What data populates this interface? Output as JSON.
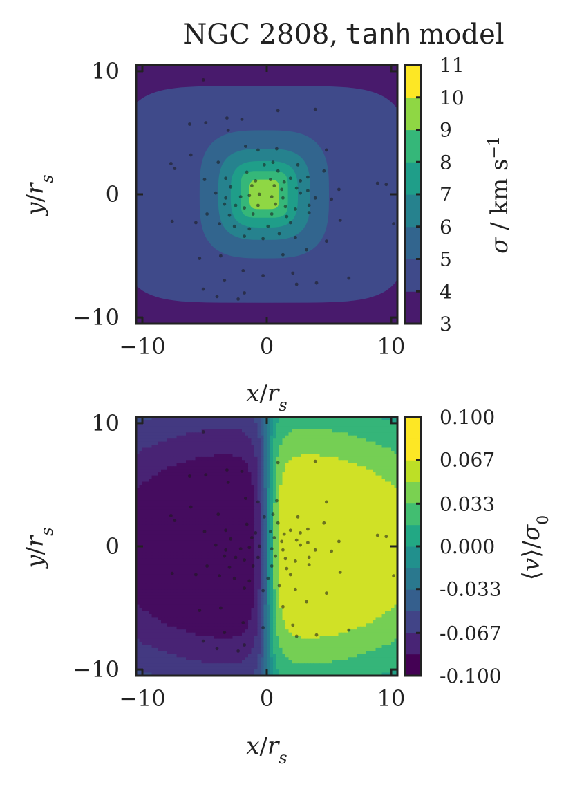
{
  "chart_data": [
    {
      "type": "heatmap",
      "plot_kind": "filled contour",
      "title_prefix": "NGC 2808,",
      "title_code": "tanh",
      "title_suffix": "model",
      "xlabel": "x/r_s",
      "ylabel": "y/r_s",
      "xlim": [
        -10.5,
        10.5
      ],
      "ylim": [
        -10.5,
        10.5
      ],
      "xticks": [
        -10,
        0,
        10
      ],
      "yticks": [
        -10,
        0,
        10
      ],
      "xtick_labels": [
        "−10",
        "0",
        "10"
      ],
      "ytick_labels": [
        "−10",
        "0",
        "10"
      ],
      "colormap": "viridis",
      "field": "rounded-square peak at center",
      "levels": [
        3,
        4,
        5,
        6,
        7,
        8,
        9,
        10,
        11
      ],
      "level_colors": [
        "#481a6c",
        "#3f4a8a",
        "#32658e",
        "#26828e",
        "#1f9e89",
        "#35b779",
        "#8fd744",
        "#fde725"
      ],
      "contour_radii": [
        {
          "level": 4,
          "radius": 10.2
        },
        {
          "level": 5,
          "radius": 5.2
        },
        {
          "level": 6,
          "radius": 3.7
        },
        {
          "level": 7,
          "radius": 2.7
        },
        {
          "level": 8,
          "radius": 1.9
        },
        {
          "level": 9,
          "radius": 1.2
        }
      ],
      "colorbar": {
        "label": "σ / km s⁻¹",
        "ticks": [
          3,
          4,
          5,
          6,
          7,
          8,
          9,
          10,
          11
        ],
        "tick_labels": [
          "3",
          "4",
          "5",
          "6",
          "7",
          "8",
          "9",
          "10",
          "11"
        ]
      }
    },
    {
      "type": "heatmap",
      "plot_kind": "filled contour",
      "xlabel": "x/r_s",
      "ylabel": "y/r_s",
      "xlim": [
        -10.5,
        10.5
      ],
      "ylim": [
        -10.5,
        10.5
      ],
      "xticks": [
        -10,
        0,
        10
      ],
      "yticks": [
        -10,
        0,
        10
      ],
      "xtick_labels": [
        "−10",
        "0",
        "10"
      ],
      "ytick_labels": [
        "−10",
        "0",
        "10"
      ],
      "colormap": "viridis",
      "field": "antisymmetric in x (rotation)",
      "levels": [
        -0.1,
        -0.0833,
        -0.0667,
        -0.05,
        -0.0333,
        -0.0167,
        0.0,
        0.0167,
        0.0333,
        0.05,
        0.0667,
        0.0833,
        0.1
      ],
      "level_colors": [
        "#440154",
        "#482475",
        "#414487",
        "#355f8d",
        "#2a788e",
        "#21908d",
        "#22a884",
        "#42be71",
        "#7ad151",
        "#bddf26",
        "#fde725",
        "#fde725"
      ],
      "colorbar": {
        "label": "⟨v⟩/σ₀",
        "ticks": [
          -0.1,
          -0.067,
          -0.033,
          0.0,
          0.033,
          0.067,
          0.1
        ],
        "tick_labels": [
          "-0.100",
          "-0.067",
          "-0.033",
          "0.000",
          "0.033",
          "0.067",
          "0.100"
        ]
      }
    }
  ],
  "stars": [
    [
      -5.1,
      9.3
    ],
    [
      0.9,
      6.8
    ],
    [
      3.9,
      6.9
    ],
    [
      -3.2,
      6.2
    ],
    [
      -6.2,
      5.7
    ],
    [
      -4.9,
      5.8
    ],
    [
      -2.0,
      6.1
    ],
    [
      -3.1,
      5.2
    ],
    [
      4.8,
      3.6
    ],
    [
      -0.7,
      3.6
    ],
    [
      -6.1,
      3.2
    ],
    [
      -1.7,
      3.9
    ],
    [
      0.8,
      3.7
    ],
    [
      -7.7,
      2.5
    ],
    [
      -7.4,
      2.1
    ],
    [
      -3.9,
      2.6
    ],
    [
      -0.2,
      2.4
    ],
    [
      0.5,
      2.6
    ],
    [
      2.5,
      2.4
    ],
    [
      -1.6,
      1.8
    ],
    [
      0.9,
      1.9
    ],
    [
      1.9,
      1.3
    ],
    [
      4.6,
      1.9
    ],
    [
      -3.3,
      1.3
    ],
    [
      -5.0,
      1.2
    ],
    [
      -0.9,
      1.1
    ],
    [
      0.3,
      1.2
    ],
    [
      1.4,
      1.0
    ],
    [
      2.7,
      1.1
    ],
    [
      3.3,
      1.4
    ],
    [
      8.9,
      0.9
    ],
    [
      9.6,
      0.8
    ],
    [
      -2.9,
      0.6
    ],
    [
      -1.2,
      0.7
    ],
    [
      0.6,
      0.7
    ],
    [
      1.2,
      0.4
    ],
    [
      2.4,
      0.5
    ],
    [
      3.3,
      0.3
    ],
    [
      5.8,
      0.4
    ],
    [
      -4.1,
      0.1
    ],
    [
      -3.3,
      -0.3
    ],
    [
      -2.1,
      -0.2
    ],
    [
      -1.4,
      -0.1
    ],
    [
      -0.6,
      0.0
    ],
    [
      0.4,
      -0.2
    ],
    [
      1.3,
      -0.3
    ],
    [
      2.7,
      0.1
    ],
    [
      3.9,
      -0.3
    ],
    [
      5.2,
      -0.4
    ],
    [
      -3.4,
      -0.8
    ],
    [
      -2.5,
      -0.9
    ],
    [
      -1.8,
      -1.1
    ],
    [
      -0.7,
      -0.9
    ],
    [
      0.7,
      -0.8
    ],
    [
      1.5,
      -1.0
    ],
    [
      2.3,
      -1.2
    ],
    [
      3.4,
      -0.9
    ],
    [
      -4.8,
      -1.6
    ],
    [
      -3.0,
      -1.7
    ],
    [
      -1.1,
      -1.6
    ],
    [
      0.4,
      -1.6
    ],
    [
      1.6,
      -1.8
    ],
    [
      3.4,
      -1.5
    ],
    [
      -7.6,
      -2.2
    ],
    [
      -5.7,
      -2.3
    ],
    [
      -3.8,
      -2.4
    ],
    [
      -2.6,
      -2.6
    ],
    [
      -1.4,
      -2.8
    ],
    [
      0.1,
      -2.6
    ],
    [
      1.9,
      -2.3
    ],
    [
      5.9,
      -2.1
    ],
    [
      10.2,
      -2.4
    ],
    [
      -1.8,
      -3.4
    ],
    [
      -0.3,
      -3.6
    ],
    [
      1.0,
      -3.2
    ],
    [
      2.3,
      -3.5
    ],
    [
      4.8,
      -3.8
    ],
    [
      -5.4,
      -5.2
    ],
    [
      -3.7,
      -5.0
    ],
    [
      1.3,
      -4.9
    ],
    [
      3.2,
      -4.5
    ],
    [
      -1.9,
      -6.2
    ],
    [
      -0.3,
      -6.6
    ],
    [
      2.1,
      -6.4
    ],
    [
      -3.4,
      -7.0
    ],
    [
      6.6,
      -6.8
    ],
    [
      -5.1,
      -7.7
    ],
    [
      -1.8,
      -8.0
    ],
    [
      2.4,
      -7.3
    ],
    [
      4.0,
      -7.2
    ],
    [
      -2.3,
      -8.5
    ],
    [
      -4.0,
      -8.3
    ]
  ]
}
